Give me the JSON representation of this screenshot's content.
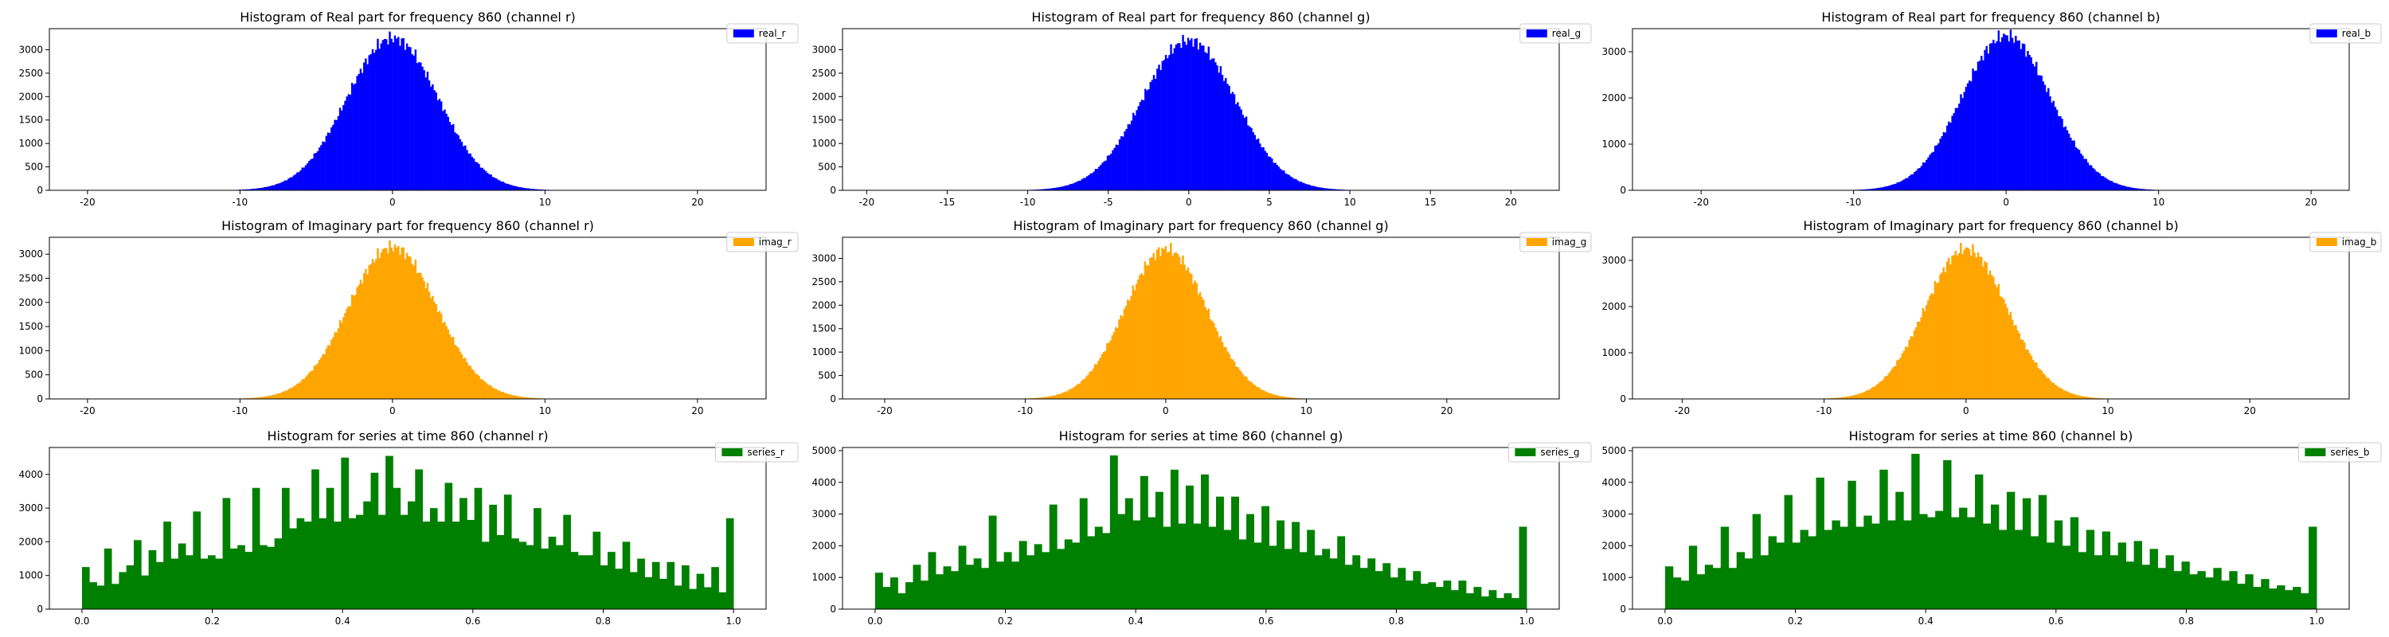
{
  "chart_data": [
    {
      "type": "bar",
      "title": "Histogram of Real part for frequency 860 (channel r)",
      "legend": "real_r",
      "color": "#0000ff",
      "dist": "gauss",
      "center": 0.0,
      "sigma": 3.0,
      "peak": 3250,
      "bins": 400,
      "xlim": [
        -22.5,
        24.5
      ],
      "ylim": [
        0,
        3450
      ],
      "xticks": [
        -20,
        -10,
        0,
        10,
        20
      ],
      "yticks": [
        0,
        500,
        1000,
        1500,
        2000,
        2500,
        3000
      ],
      "data_range": [
        -21.5,
        23.5
      ],
      "legend_placement": "top-right"
    },
    {
      "type": "bar",
      "title": "Histogram of Real part for frequency 860 (channel g)",
      "legend": "real_g",
      "color": "#0000ff",
      "dist": "gauss",
      "center": 0.0,
      "sigma": 2.9,
      "peak": 3200,
      "bins": 400,
      "xlim": [
        -21.5,
        23
      ],
      "ylim": [
        0,
        3450
      ],
      "xticks": [
        -20,
        -15,
        -10,
        -5,
        0,
        5,
        10,
        15,
        20
      ],
      "yticks": [
        0,
        500,
        1000,
        1500,
        2000,
        2500,
        3000
      ],
      "data_range": [
        -20.5,
        22
      ],
      "legend_placement": "top-right"
    },
    {
      "type": "bar",
      "title": "Histogram of Real part for frequency 860 (channel b)",
      "legend": "real_b",
      "color": "#0000ff",
      "dist": "gauss",
      "center": 0.0,
      "sigma": 2.9,
      "peak": 3350,
      "bins": 400,
      "xlim": [
        -24.5,
        22.5
      ],
      "ylim": [
        0,
        3500
      ],
      "xticks": [
        -20,
        -10,
        0,
        10,
        20
      ],
      "yticks": [
        0,
        1000,
        2000,
        3000
      ],
      "data_range": [
        -23.5,
        21.5
      ],
      "legend_placement": "top-right"
    },
    {
      "type": "bar",
      "title": "Histogram of Imaginary part for frequency 860 (channel r)",
      "legend": "imag_r",
      "color": "#ffa500",
      "dist": "gauss",
      "center": 0.0,
      "sigma": 2.9,
      "peak": 3150,
      "bins": 400,
      "xlim": [
        -22.5,
        24.5
      ],
      "ylim": [
        0,
        3350
      ],
      "xticks": [
        -20,
        -10,
        0,
        10,
        20
      ],
      "yticks": [
        0,
        500,
        1000,
        1500,
        2000,
        2500,
        3000
      ],
      "data_range": [
        -21.5,
        23.5
      ],
      "legend_placement": "top-right"
    },
    {
      "type": "bar",
      "title": "Histogram of Imaginary part for frequency 860 (channel g)",
      "legend": "imag_g",
      "color": "#ffa500",
      "dist": "gauss",
      "center": 0.0,
      "sigma": 2.9,
      "peak": 3200,
      "bins": 400,
      "xlim": [
        -23,
        28
      ],
      "ylim": [
        0,
        3450
      ],
      "xticks": [
        -20,
        -10,
        0,
        10,
        20
      ],
      "yticks": [
        0,
        500,
        1000,
        1500,
        2000,
        2500,
        3000
      ],
      "data_range": [
        -22,
        27
      ],
      "legend_placement": "top-right"
    },
    {
      "type": "bar",
      "title": "Histogram of Imaginary part for frequency 860 (channel b)",
      "legend": "imag_b",
      "color": "#ffa500",
      "dist": "gauss",
      "center": 0.0,
      "sigma": 2.9,
      "peak": 3250,
      "bins": 400,
      "xlim": [
        -23.5,
        27
      ],
      "ylim": [
        0,
        3500
      ],
      "xticks": [
        -20,
        -10,
        0,
        10,
        20
      ],
      "yticks": [
        0,
        1000,
        2000,
        3000
      ],
      "data_range": [
        -22.5,
        26
      ],
      "legend_placement": "top-right"
    },
    {
      "type": "bar",
      "title": "Histogram for series at time 860 (channel r)",
      "legend": "series_r",
      "color": "#008000",
      "dist": "series",
      "xlim": [
        -0.05,
        1.05
      ],
      "ylim": [
        0,
        4800
      ],
      "xticks": [
        0.0,
        0.2,
        0.4,
        0.6,
        0.8,
        1.0
      ],
      "yticks": [
        0,
        1000,
        2000,
        3000,
        4000
      ],
      "values": [
        1250,
        800,
        700,
        1800,
        750,
        1100,
        1300,
        2050,
        1000,
        1750,
        1400,
        2600,
        1500,
        1950,
        1600,
        2900,
        1500,
        1600,
        1500,
        3300,
        1800,
        1900,
        1700,
        3600,
        1900,
        1850,
        2100,
        3600,
        2400,
        2700,
        2600,
        4150,
        2700,
        3600,
        2600,
        4500,
        2700,
        2800,
        3200,
        4050,
        2800,
        4550,
        3600,
        2800,
        3200,
        4150,
        2600,
        3000,
        2600,
        3750,
        2600,
        3300,
        2650,
        3600,
        2000,
        3100,
        2200,
        3400,
        2100,
        2000,
        1900,
        3000,
        1800,
        2150,
        1900,
        2800,
        1700,
        1600,
        1600,
        2300,
        1300,
        1700,
        1200,
        2000,
        1100,
        1500,
        950,
        1400,
        900,
        1400,
        700,
        1300,
        600,
        1050,
        650,
        1250,
        500,
        2700
      ],
      "legend_placement": "top-right"
    },
    {
      "type": "bar",
      "title": "Histogram for series at time 860 (channel g)",
      "legend": "series_g",
      "color": "#008000",
      "dist": "series",
      "xlim": [
        -0.05,
        1.05
      ],
      "ylim": [
        0,
        5100
      ],
      "xticks": [
        0.0,
        0.2,
        0.4,
        0.6,
        0.8,
        1.0
      ],
      "yticks": [
        0,
        1000,
        2000,
        3000,
        4000,
        5000
      ],
      "values": [
        1150,
        700,
        1000,
        500,
        850,
        1400,
        900,
        1800,
        1100,
        1350,
        1200,
        2000,
        1400,
        1600,
        1300,
        2950,
        1500,
        1800,
        1500,
        2150,
        1700,
        2050,
        1800,
        3300,
        1900,
        2200,
        2100,
        3500,
        2300,
        2600,
        2400,
        4850,
        3000,
        3500,
        2800,
        4200,
        2900,
        3700,
        2600,
        4400,
        2700,
        3900,
        2700,
        4250,
        2600,
        3550,
        2500,
        3550,
        2200,
        3000,
        2100,
        3250,
        2000,
        2800,
        1900,
        2750,
        1800,
        2500,
        1700,
        1900,
        1600,
        2300,
        1400,
        1700,
        1300,
        1600,
        1200,
        1450,
        1000,
        1300,
        900,
        1200,
        800,
        850,
        700,
        900,
        600,
        900,
        500,
        700,
        400,
        600,
        350,
        500,
        350,
        2600
      ],
      "legend_placement": "top-right"
    },
    {
      "type": "bar",
      "title": "Histogram for series at time 860 (channel b)",
      "legend": "series_b",
      "color": "#008000",
      "dist": "series",
      "xlim": [
        -0.05,
        1.05
      ],
      "ylim": [
        0,
        5100
      ],
      "xticks": [
        0.0,
        0.2,
        0.4,
        0.6,
        0.8,
        1.0
      ],
      "yticks": [
        0,
        1000,
        2000,
        3000,
        4000,
        5000
      ],
      "values": [
        1350,
        1000,
        900,
        2000,
        1100,
        1400,
        1300,
        2600,
        1300,
        1800,
        1600,
        3000,
        1700,
        2300,
        2100,
        3600,
        2100,
        2500,
        2300,
        4150,
        2500,
        2800,
        2600,
        4050,
        2600,
        2950,
        2700,
        4400,
        2800,
        3700,
        2800,
        4900,
        3000,
        2900,
        3100,
        4700,
        2900,
        3200,
        2900,
        4250,
        2700,
        3300,
        2500,
        3700,
        2500,
        3500,
        2300,
        3600,
        2100,
        2800,
        2000,
        2900,
        1800,
        2500,
        1700,
        2450,
        1700,
        2100,
        1500,
        2150,
        1400,
        1900,
        1300,
        1700,
        1200,
        1500,
        1100,
        1200,
        1000,
        1300,
        900,
        1200,
        800,
        1100,
        700,
        950,
        650,
        750,
        600,
        700,
        500,
        2600
      ],
      "legend_placement": "top-right"
    }
  ]
}
